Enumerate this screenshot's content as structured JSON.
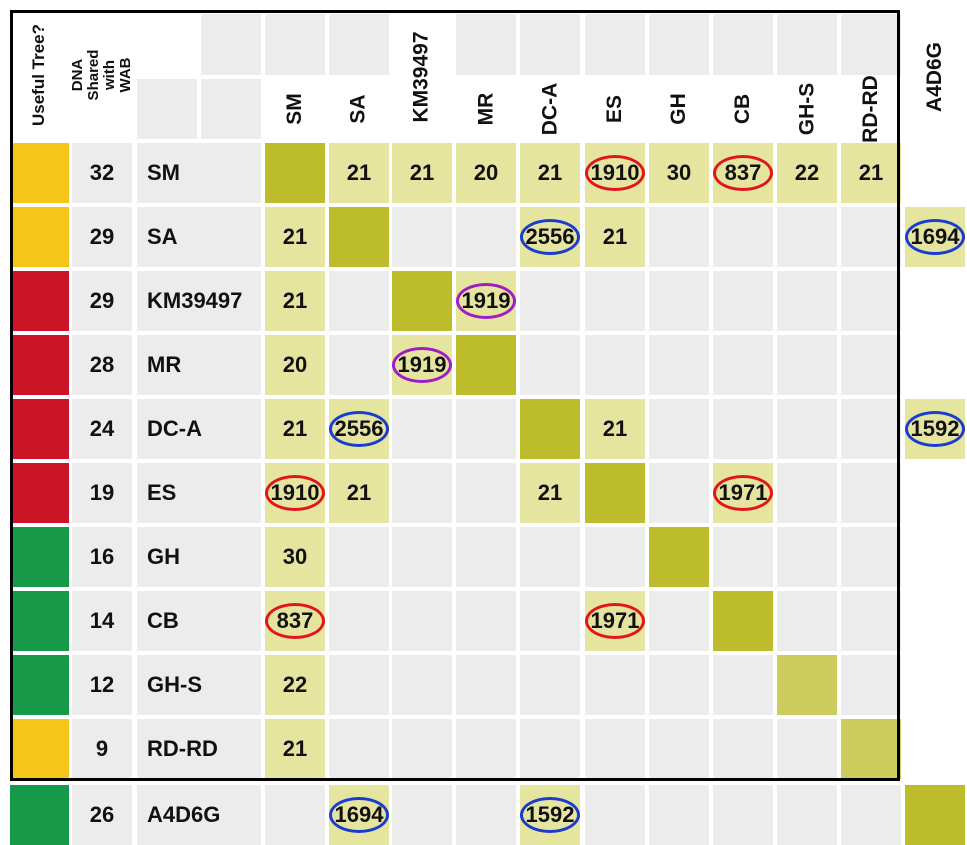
{
  "header": {
    "useful_tree": "Useful Tree?",
    "dna_shared": "DNA Shared with WAB"
  },
  "columns": [
    "SM",
    "SA",
    "KM39497",
    "MR",
    "DC-A",
    "ES",
    "GH",
    "CB",
    "GH-S",
    "RD-RD",
    "A4D6G"
  ],
  "rows": [
    {
      "color": "yellow",
      "shared": "32",
      "name": "SM",
      "cells": [
        "D",
        "21",
        "21",
        "20",
        "21",
        {
          "v": "1910",
          "ring": "red"
        },
        "30",
        {
          "v": "837",
          "ring": "red"
        },
        "22",
        "21",
        ""
      ]
    },
    {
      "color": "yellow",
      "shared": "29",
      "name": "SA",
      "cells": [
        "21",
        "D",
        "",
        "",
        {
          "v": "2556",
          "ring": "blue"
        },
        "21",
        "",
        "",
        "",
        "",
        {
          "v": "1694",
          "ring": "blue"
        }
      ]
    },
    {
      "color": "red",
      "shared": "29",
      "name": "KM39497",
      "cells": [
        "21",
        "",
        "D",
        {
          "v": "1919",
          "ring": "purple"
        },
        "",
        "",
        "",
        "",
        "",
        "",
        ""
      ]
    },
    {
      "color": "red",
      "shared": "28",
      "name": "MR",
      "cells": [
        "20",
        "",
        {
          "v": "1919",
          "ring": "purple"
        },
        "D",
        "",
        "",
        "",
        "",
        "",
        "",
        ""
      ]
    },
    {
      "color": "red",
      "shared": "24",
      "name": "DC-A",
      "cells": [
        "21",
        {
          "v": "2556",
          "ring": "blue"
        },
        "",
        "",
        "D",
        "21",
        "",
        "",
        "",
        "",
        {
          "v": "1592",
          "ring": "blue"
        }
      ]
    },
    {
      "color": "red",
      "shared": "19",
      "name": "ES",
      "cells": [
        {
          "v": "1910",
          "ring": "red"
        },
        "21",
        "",
        "",
        "21",
        "D",
        "",
        {
          "v": "1971",
          "ring": "red"
        },
        "",
        "",
        ""
      ]
    },
    {
      "color": "green",
      "shared": "16",
      "name": "GH",
      "cells": [
        "30",
        "",
        "",
        "",
        "",
        "",
        "D",
        "",
        "",
        "",
        ""
      ]
    },
    {
      "color": "green",
      "shared": "14",
      "name": "CB",
      "cells": [
        {
          "v": "837",
          "ring": "red"
        },
        "",
        "",
        "",
        "",
        {
          "v": "1971",
          "ring": "red"
        },
        "",
        "D",
        "",
        "",
        ""
      ]
    },
    {
      "color": "green",
      "shared": "12",
      "name": "GH-S",
      "cells": [
        "22",
        "",
        "",
        "",
        "",
        "",
        "",
        "",
        "P",
        "",
        ""
      ]
    },
    {
      "color": "yellow",
      "shared": "9",
      "name": "RD-RD",
      "cells": [
        "21",
        "",
        "",
        "",
        "",
        "",
        "",
        "",
        "",
        "P",
        ""
      ]
    },
    {
      "color": "green",
      "shared": "26",
      "name": "A4D6G",
      "cells": [
        "",
        {
          "v": "1694",
          "ring": "blue"
        },
        "",
        "",
        {
          "v": "1592",
          "ring": "blue"
        },
        "",
        "",
        "",
        "",
        "",
        "D"
      ]
    }
  ],
  "colors": {
    "yellow": "#f5c619",
    "red": "#cc1427",
    "green": "#17994a",
    "match_cell": "#e6e5a0",
    "diagonal": "#bdbd2c",
    "ring_red": "#e3141c",
    "ring_blue": "#1a3ccf",
    "ring_purple": "#a01cc4"
  }
}
